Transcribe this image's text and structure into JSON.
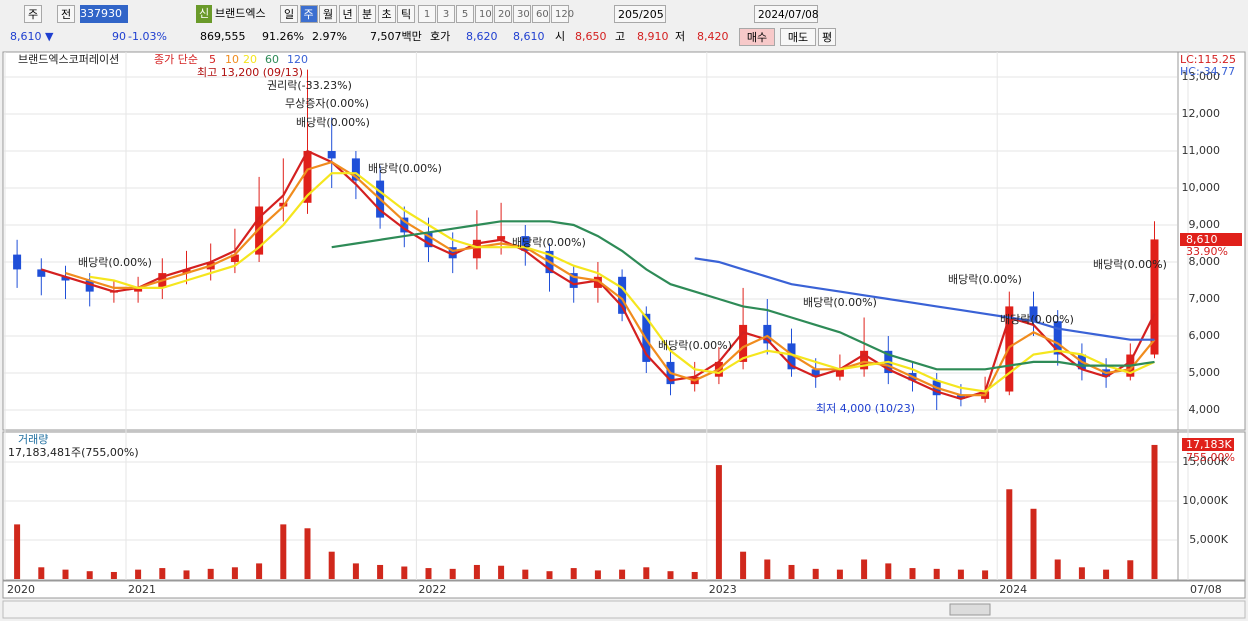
{
  "toolbar": {
    "period": "주",
    "mode": "전",
    "code": "337930",
    "new": "신",
    "name": "브랜드엑스",
    "periods": [
      "일",
      "주",
      "월",
      "년",
      "분",
      "초",
      "틱"
    ],
    "intervals": [
      "1",
      "3",
      "5",
      "10",
      "20",
      "30",
      "60",
      "120"
    ],
    "count": "205/205",
    "date": "2024/07/08"
  },
  "quote": {
    "price": "8,610 ▼",
    "change": "90",
    "rate": "-1.03%",
    "volume": "869,555",
    "vol_ratio": "91.26%",
    "turnover": "2.97%",
    "amount": "7,507백만",
    "ask_label": "호가",
    "ask": "8,620",
    "bid": "8,610",
    "open_label": "시",
    "open": "8,650",
    "high_label": "고",
    "high": "8,910",
    "low_label": "저",
    "low": "8,420",
    "buy": "매수",
    "sell": "매도",
    "avg": "평"
  },
  "chart_data": [
    {
      "type": "candlestick",
      "title": "브랜드엑스코퍼레이션",
      "subtitle": "종가 단순",
      "categories": [
        "2020",
        null,
        null,
        null,
        null,
        "2021",
        null,
        null,
        null,
        null,
        null,
        null,
        null,
        null,
        null,
        null,
        null,
        "2022",
        null,
        null,
        null,
        null,
        null,
        null,
        null,
        null,
        null,
        null,
        null,
        "2023",
        null,
        null,
        null,
        null,
        null,
        null,
        null,
        null,
        null,
        null,
        null,
        "2024",
        null,
        null,
        null,
        null,
        null,
        "07/08"
      ],
      "open": [
        8200,
        7800,
        7600,
        7500,
        7200,
        7200,
        7300,
        7700,
        7800,
        8000,
        8200,
        9500,
        9600,
        11000,
        10800,
        10200,
        9200,
        8800,
        8400,
        8100,
        8600,
        8700,
        8300,
        7700,
        7300,
        7600,
        6600,
        5300,
        4700,
        4900,
        5300,
        6300,
        5800,
        5100,
        4900,
        5100,
        5600,
        5000,
        4800,
        4400,
        4300,
        4500,
        6800,
        6400,
        5500,
        5100,
        4900,
        5500
      ],
      "high": [
        8600,
        8100,
        7900,
        7700,
        7500,
        7600,
        8100,
        8300,
        8500,
        8900,
        10300,
        10800,
        13200,
        11900,
        11000,
        10600,
        9500,
        9200,
        8800,
        9400,
        9600,
        9000,
        8500,
        7900,
        8000,
        7800,
        6800,
        5600,
        5300,
        5700,
        7300,
        7000,
        6200,
        5400,
        5500,
        6500,
        6000,
        5300,
        5000,
        4700,
        4900,
        7200,
        7200,
        6700,
        5800,
        5400,
        5800,
        9100
      ],
      "low": [
        7300,
        7100,
        7000,
        6800,
        6900,
        6900,
        7000,
        7400,
        7500,
        7700,
        8000,
        9100,
        9300,
        10000,
        9700,
        8900,
        8400,
        8000,
        7700,
        7800,
        8200,
        7900,
        7200,
        6900,
        6900,
        6400,
        5000,
        4400,
        4500,
        4700,
        5100,
        5500,
        4900,
        4600,
        4800,
        4900,
        4700,
        4500,
        4000,
        4100,
        4200,
        4400,
        6000,
        5200,
        4800,
        4600,
        4800,
        5400
      ],
      "values": [
        7800,
        7600,
        7500,
        7200,
        7200,
        7300,
        7700,
        7800,
        8000,
        8200,
        9500,
        9600,
        11000,
        10800,
        10200,
        9200,
        8800,
        8400,
        8100,
        8600,
        8700,
        8300,
        7700,
        7300,
        7600,
        6600,
        5300,
        4700,
        4900,
        5300,
        6300,
        5800,
        5100,
        4900,
        5100,
        5600,
        5000,
        4800,
        4400,
        4300,
        4500,
        6800,
        6400,
        5500,
        5100,
        4900,
        5500,
        8610
      ],
      "up_color": "#e0201a",
      "down_color": "#1f4fd8",
      "series": [
        {
          "name": "5",
          "color": "#d42020",
          "values": [
            null,
            7800,
            7600,
            7400,
            7200,
            7300,
            7600,
            7800,
            8000,
            8300,
            9200,
            9800,
            11000,
            10700,
            10100,
            9400,
            8900,
            8500,
            8200,
            8500,
            8600,
            8300,
            7800,
            7400,
            7500,
            6800,
            5500,
            4800,
            4900,
            5300,
            6100,
            5900,
            5200,
            4900,
            5100,
            5500,
            5100,
            4800,
            4500,
            4300,
            4500,
            6500,
            6300,
            5600,
            5100,
            4900,
            5300,
            6600
          ]
        },
        {
          "name": "10",
          "color": "#f08c1e",
          "values": [
            null,
            null,
            7700,
            7500,
            7300,
            7300,
            7500,
            7700,
            7900,
            8200,
            8900,
            9500,
            10500,
            10700,
            10300,
            9700,
            9100,
            8700,
            8300,
            8400,
            8500,
            8400,
            8000,
            7600,
            7500,
            7000,
            5900,
            5000,
            4800,
            5100,
            5700,
            6000,
            5500,
            5100,
            5100,
            5300,
            5200,
            4900,
            4600,
            4400,
            4400,
            5700,
            6100,
            5800,
            5300,
            5000,
            5100,
            5900
          ]
        },
        {
          "name": "20",
          "color": "#f5e61e",
          "values": [
            null,
            null,
            null,
            7600,
            7500,
            7300,
            7300,
            7500,
            7700,
            7900,
            8400,
            9000,
            9800,
            10400,
            10400,
            9900,
            9400,
            9000,
            8600,
            8400,
            8400,
            8400,
            8200,
            7900,
            7700,
            7300,
            6500,
            5600,
            5100,
            5000,
            5400,
            5600,
            5500,
            5300,
            5100,
            5200,
            5300,
            5100,
            4800,
            4600,
            4500,
            5000,
            5500,
            5600,
            5500,
            5200,
            5000,
            5300
          ]
        },
        {
          "name": "60",
          "color": "#2e8b57",
          "values": [
            null,
            null,
            null,
            null,
            null,
            null,
            null,
            null,
            null,
            null,
            null,
            null,
            null,
            8400,
            8500,
            8600,
            8700,
            8800,
            8900,
            9000,
            9100,
            9100,
            9100,
            9000,
            8700,
            8300,
            7800,
            7400,
            7200,
            7000,
            6800,
            6700,
            6500,
            6300,
            6100,
            5800,
            5500,
            5300,
            5100,
            5100,
            5100,
            5200,
            5300,
            5300,
            5200,
            5200,
            5200,
            5300
          ]
        },
        {
          "name": "120",
          "color": "#3a62d6",
          "values": [
            null,
            null,
            null,
            null,
            null,
            null,
            null,
            null,
            null,
            null,
            null,
            null,
            null,
            null,
            null,
            null,
            null,
            null,
            null,
            null,
            null,
            null,
            null,
            null,
            null,
            null,
            null,
            null,
            8100,
            8000,
            7800,
            7600,
            7400,
            7300,
            7200,
            7100,
            7000,
            6900,
            6800,
            6700,
            6600,
            6500,
            6400,
            6200,
            6100,
            6000,
            5900,
            5900
          ]
        }
      ],
      "ylim": [
        3460,
        13405
      ],
      "yticks": [
        {
          "value": 4000,
          "label": "4,000"
        },
        {
          "value": 5000,
          "label": "5,000"
        },
        {
          "value": 6000,
          "label": "6,000"
        },
        {
          "value": 7000,
          "label": "7,000"
        },
        {
          "value": 8000,
          "label": "8,000"
        },
        {
          "value": 9000,
          "label": "9,000"
        },
        {
          "value": 10000,
          "label": "10,000"
        },
        {
          "value": 11000,
          "label": "11,000"
        },
        {
          "value": 12000,
          "label": "12,000"
        },
        {
          "value": 13000,
          "label": "13,000"
        }
      ],
      "grid": true,
      "lc": "LC:115.25",
      "hc": "HC:-34.77",
      "last_label": "8,610",
      "last_rate": "33.90%",
      "annotations": [
        "최고 13,200 (09/13)",
        "권리락(-33.23%)",
        "무상증자(0.00%)",
        "배당락(0.00%)",
        "배당락(0.00%)",
        "배당락(0.00%)",
        "배당락(0.00%)",
        "배당락(0.00%)",
        "배당락(0.00%)",
        "배당락(0.00%)",
        "배당락(0.00%)",
        "배당락(0.00%)",
        "최저 4,000 (10/23)"
      ]
    },
    {
      "type": "bar",
      "title": "거래량",
      "subtitle": "17,183,481주(755,00%)",
      "color": "#d0281c",
      "values": [
        7000,
        1500,
        1200,
        1000,
        900,
        1200,
        1400,
        1100,
        1300,
        1500,
        2000,
        7000,
        6500,
        3500,
        2000,
        1800,
        1600,
        1400,
        1300,
        1800,
        1700,
        1200,
        1000,
        1400,
        1100,
        1200,
        1500,
        1000,
        900,
        14600,
        3500,
        2500,
        1800,
        1300,
        1200,
        2500,
        2000,
        1400,
        1300,
        1200,
        1100,
        11500,
        9000,
        2500,
        1500,
        1200,
        2400,
        17183
      ],
      "ylim": [
        0,
        18200
      ],
      "yticks": [
        {
          "value": 5000,
          "label": "5,000K"
        },
        {
          "value": 10000,
          "label": "10,000K"
        },
        {
          "value": 15000,
          "label": "15,000K"
        }
      ],
      "grid": true,
      "last_label": "17,183K",
      "last_rate": "755.00%"
    }
  ]
}
